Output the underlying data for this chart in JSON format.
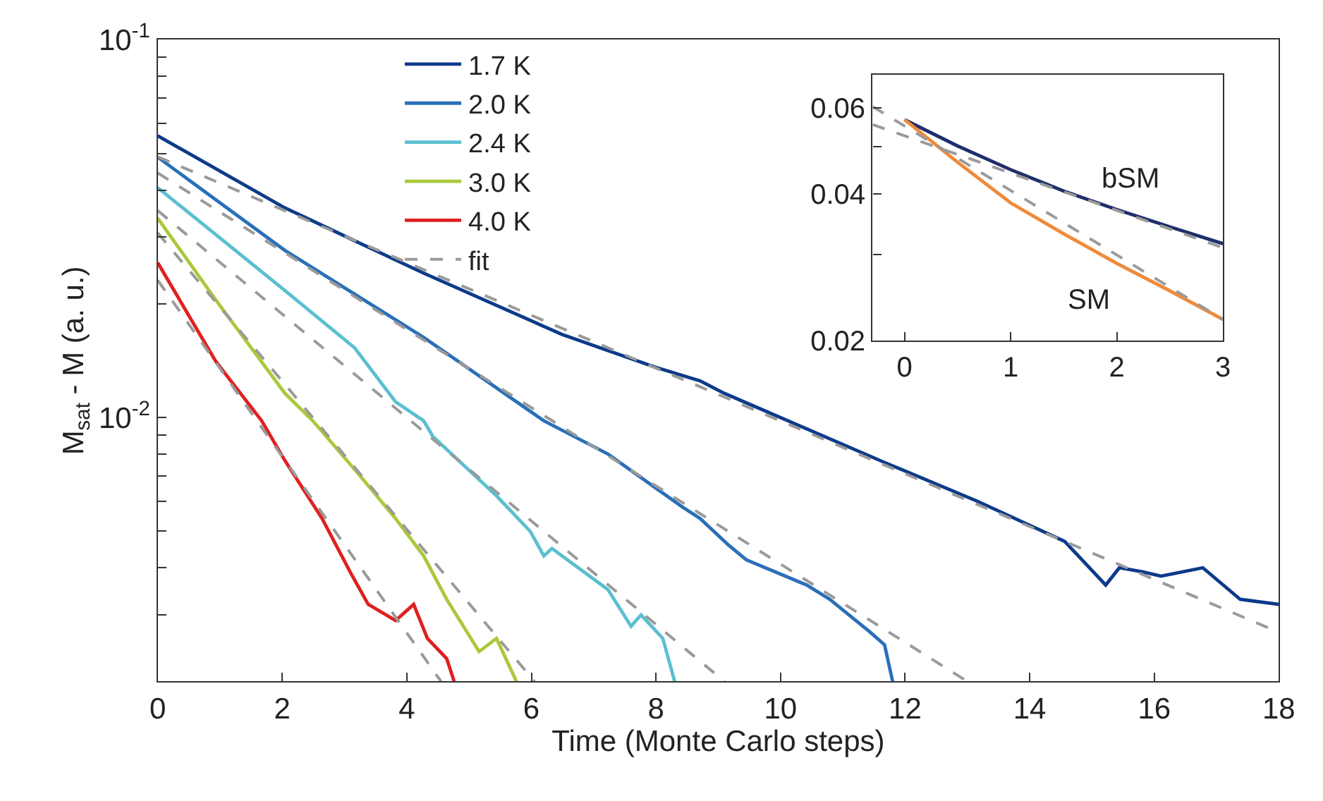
{
  "chart_data": [
    {
      "type": "line",
      "xlabel": "Time (Monte Carlo steps)",
      "ylabel": "M$_{sat}$ - M (a. u.)",
      "log": "y",
      "legend": "top",
      "xlim": [
        0,
        18
      ],
      "ylim": [
        0.002,
        0.1
      ],
      "xticks": [
        0,
        2,
        4,
        6,
        8,
        10,
        12,
        14,
        16,
        18
      ],
      "yticks": [
        {
          "value": 0.1,
          "label": "10$^{-1}$"
        },
        {
          "value": 0.01,
          "label": "10$^{-2}$"
        },
        {
          "value": 0.003,
          "label": null
        },
        {
          "value": 0.004,
          "label": null
        },
        {
          "value": 0.005,
          "label": null
        },
        {
          "value": 0.006,
          "label": null
        },
        {
          "value": 0.007,
          "label": null
        },
        {
          "value": 0.008,
          "label": null
        },
        {
          "value": 0.009,
          "label": null
        },
        {
          "value": 0.02,
          "label": null
        },
        {
          "value": 0.03,
          "label": null
        },
        {
          "value": 0.04,
          "label": null
        },
        {
          "value": 0.05,
          "label": null
        },
        {
          "value": 0.06,
          "label": null
        },
        {
          "value": 0.07,
          "label": null
        },
        {
          "value": 0.08,
          "label": null
        },
        {
          "value": 0.09,
          "label": null
        }
      ],
      "series": [
        {
          "name": "1.7 K",
          "color": "#0d3a8a",
          "x": [
            0,
            2.04,
            4.27,
            6.49,
            7.98,
            8.71,
            9.09,
            11.67,
            13.16,
            14.56,
            15.22,
            15.44,
            15.82,
            16.11,
            16.78,
            17.38,
            18
          ],
          "values": [
            0.0557,
            0.0359,
            0.0241,
            0.0166,
            0.0136,
            0.0125,
            0.0116,
            0.0076,
            0.006,
            0.0047,
            0.0036,
            0.004,
            0.0039,
            0.0038,
            0.004,
            0.0033,
            0.0032
          ]
        },
        {
          "name": "2.0 K",
          "color": "#2a6fb8",
          "x": [
            0,
            2.04,
            4.27,
            6.2,
            7.23,
            8.42,
            8.71,
            9.16,
            9.45,
            10.42,
            10.79,
            11.44,
            11.67,
            11.8
          ],
          "values": [
            0.0489,
            0.0277,
            0.0163,
            0.0098,
            0.008,
            0.0058,
            0.0054,
            0.0046,
            0.0042,
            0.0036,
            0.0033,
            0.0027,
            0.0025,
            0.002
          ]
        },
        {
          "name": "2.4 K",
          "color": "#5bbfd0",
          "x": [
            0,
            2.04,
            3.16,
            3.82,
            4.27,
            4.42,
            5.44,
            5.98,
            6.2,
            6.33,
            7.23,
            7.6,
            7.76,
            8.11,
            8.3
          ],
          "values": [
            0.0406,
            0.0217,
            0.0153,
            0.011,
            0.0098,
            0.0089,
            0.0062,
            0.005,
            0.0043,
            0.0045,
            0.0035,
            0.0028,
            0.003,
            0.0026,
            0.002
          ]
        },
        {
          "name": "3.0 K",
          "color": "#a9c93b",
          "x": [
            0,
            0.93,
            2.04,
            2.49,
            3.22,
            3.82,
            4.27,
            4.64,
            5.16,
            5.44,
            5.76
          ],
          "values": [
            0.0337,
            0.0205,
            0.0116,
            0.0098,
            0.0071,
            0.0054,
            0.0043,
            0.0033,
            0.0024,
            0.0026,
            0.002
          ]
        },
        {
          "name": "4.0 K",
          "color": "#e02020",
          "x": [
            0,
            0.93,
            1.67,
            2.04,
            2.64,
            3.09,
            3.38,
            3.82,
            4.11,
            4.33,
            4.64,
            4.76
          ],
          "values": [
            0.0257,
            0.0141,
            0.0098,
            0.0077,
            0.0054,
            0.0039,
            0.0032,
            0.0029,
            0.0032,
            0.0026,
            0.0023,
            0.002
          ]
        },
        {
          "name": "fit",
          "color": "#9a9a9a",
          "line_style": "dashed",
          "x": [
            0,
            18
          ],
          "values": [
            0.049,
            0.0027
          ]
        },
        {
          "color": "#9a9a9a",
          "line_style": "dashed",
          "x": [
            0,
            13.0
          ],
          "values": [
            0.0444,
            0.002
          ]
        },
        {
          "color": "#9a9a9a",
          "line_style": "dashed",
          "x": [
            0,
            9.1
          ],
          "values": [
            0.0353,
            0.002
          ]
        },
        {
          "color": "#9a9a9a",
          "line_style": "dashed",
          "x": [
            0,
            6.05
          ],
          "values": [
            0.0308,
            0.002
          ]
        },
        {
          "color": "#9a9a9a",
          "line_style": "dashed",
          "x": [
            0,
            4.55
          ],
          "values": [
            0.0231,
            0.002
          ]
        }
      ]
    },
    {
      "type": "line",
      "log": "y",
      "xlim": [
        -0.3,
        3
      ],
      "ylim": [
        0.02,
        0.07
      ],
      "xticks": [
        0,
        1,
        2,
        3
      ],
      "yticks": [
        0.02,
        0.04,
        0.06,
        {
          "value": 0.03,
          "label": null
        },
        {
          "value": 0.05,
          "label": null
        }
      ],
      "series": [
        {
          "name": "bSM",
          "color": "#1f2f6b",
          "x": [
            0,
            0.5,
            1,
            1.5,
            2,
            2.5,
            3
          ],
          "values": [
            0.0567,
            0.0501,
            0.0448,
            0.0405,
            0.0371,
            0.0342,
            0.0316
          ]
        },
        {
          "name": "SM",
          "color": "#ef8a3a",
          "x": [
            0,
            0.5,
            1,
            1.5,
            2,
            2.5,
            3
          ],
          "values": [
            0.0567,
            0.0464,
            0.0383,
            0.0331,
            0.0288,
            0.0253,
            0.0221
          ]
        },
        {
          "color": "#9a9a9a",
          "line_style": "dashed",
          "x": [
            -0.3,
            3
          ],
          "values": [
            0.0554,
            0.031
          ]
        },
        {
          "color": "#9a9a9a",
          "line_style": "dashed",
          "x": [
            -0.3,
            3
          ],
          "values": [
            0.0603,
            0.0221
          ]
        }
      ]
    }
  ]
}
